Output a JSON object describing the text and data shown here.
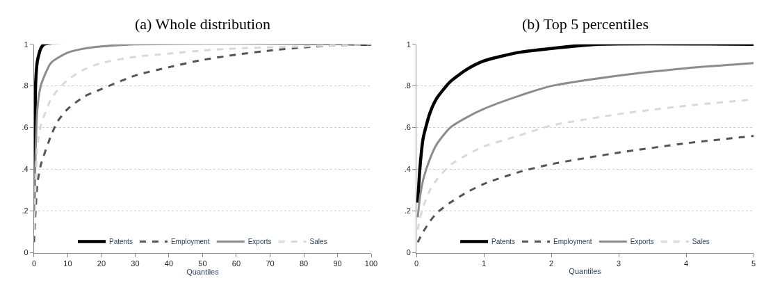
{
  "chart_data": [
    {
      "type": "line",
      "title": "(a) Whole distribution",
      "xlabel": "Quantiles",
      "xlim": [
        0,
        100
      ],
      "xticks": [
        0,
        10,
        20,
        30,
        40,
        50,
        60,
        70,
        80,
        90,
        100
      ],
      "ylim": [
        0,
        1
      ],
      "yticks": [
        {
          "value": 0,
          "label": "0"
        },
        {
          "value": 0.2,
          "label": ".2"
        },
        {
          "value": 0.4,
          "label": ".4"
        },
        {
          "value": 0.6,
          "label": ".6"
        },
        {
          "value": 0.8,
          "label": ".8"
        },
        {
          "value": 1,
          "label": "1"
        }
      ],
      "grid": "y",
      "legend": "bottom",
      "marker": "none",
      "series": [
        {
          "name": "Patents",
          "color": "#000000",
          "line_style": "solid",
          "x": [
            0,
            0.5,
            1,
            2,
            3,
            100
          ],
          "values": [
            0.24,
            0.82,
            0.92,
            0.98,
            1,
            1
          ]
        },
        {
          "name": "Employment",
          "color": "#555555",
          "line_style": "dashed",
          "x": [
            0,
            1,
            2,
            5,
            7,
            10,
            15,
            20,
            30,
            40,
            50,
            60,
            70,
            80,
            90,
            100
          ],
          "values": [
            0.05,
            0.33,
            0.42,
            0.56,
            0.63,
            0.69,
            0.75,
            0.785,
            0.85,
            0.89,
            0.925,
            0.95,
            0.97,
            0.985,
            0.995,
            1
          ]
        },
        {
          "name": "Exports",
          "color": "#8c8c8c",
          "line_style": "solid",
          "x": [
            0,
            1,
            2,
            5,
            10,
            15,
            20,
            30,
            100
          ],
          "values": [
            0.17,
            0.69,
            0.8,
            0.91,
            0.96,
            0.98,
            0.99,
            1,
            1
          ]
        },
        {
          "name": "Sales",
          "color": "#d9d9d9",
          "line_style": "dashed",
          "x": [
            0,
            1,
            2,
            5,
            7,
            10,
            15,
            20,
            30,
            40,
            50,
            60,
            70,
            80,
            90,
            100
          ],
          "values": [
            0.11,
            0.51,
            0.61,
            0.735,
            0.78,
            0.83,
            0.88,
            0.91,
            0.94,
            0.955,
            0.97,
            0.98,
            0.985,
            0.99,
            0.995,
            1
          ]
        }
      ]
    },
    {
      "type": "line",
      "title": "(b) Top 5 percentiles",
      "xlabel": "Quantiles",
      "xlim": [
        0,
        5
      ],
      "xticks": [
        0,
        1,
        2,
        3,
        4,
        5
      ],
      "ylim": [
        0,
        1
      ],
      "yticks": [
        {
          "value": 0,
          "label": "0"
        },
        {
          "value": 0.2,
          "label": ".2"
        },
        {
          "value": 0.4,
          "label": ".4"
        },
        {
          "value": 0.6,
          "label": ".6"
        },
        {
          "value": 0.8,
          "label": ".8"
        },
        {
          "value": 1,
          "label": "1"
        }
      ],
      "grid": "y",
      "legend": "bottom",
      "marker": "none",
      "series": [
        {
          "name": "Patents",
          "color": "#000000",
          "line_style": "solid",
          "x": [
            0.02,
            0.05,
            0.1,
            0.2,
            0.3,
            0.5,
            0.75,
            1,
            1.5,
            2,
            2.7,
            5
          ],
          "values": [
            0.24,
            0.4,
            0.55,
            0.67,
            0.74,
            0.82,
            0.88,
            0.92,
            0.96,
            0.98,
            1,
            1
          ]
        },
        {
          "name": "Employment",
          "color": "#555555",
          "line_style": "dashed",
          "x": [
            0.02,
            0.05,
            0.1,
            0.2,
            0.3,
            0.5,
            0.75,
            1,
            1.5,
            2,
            3,
            4,
            5
          ],
          "values": [
            0.05,
            0.07,
            0.1,
            0.15,
            0.19,
            0.24,
            0.29,
            0.33,
            0.385,
            0.425,
            0.48,
            0.525,
            0.56
          ]
        },
        {
          "name": "Exports",
          "color": "#8c8c8c",
          "line_style": "solid",
          "x": [
            0.02,
            0.05,
            0.1,
            0.2,
            0.3,
            0.5,
            0.75,
            1,
            1.5,
            2,
            3,
            4,
            5
          ],
          "values": [
            0.17,
            0.26,
            0.35,
            0.45,
            0.52,
            0.6,
            0.65,
            0.69,
            0.75,
            0.8,
            0.85,
            0.885,
            0.91
          ]
        },
        {
          "name": "Sales",
          "color": "#d9d9d9",
          "line_style": "dashed",
          "x": [
            0.02,
            0.05,
            0.1,
            0.2,
            0.3,
            0.5,
            0.75,
            1,
            1.5,
            2,
            3,
            4,
            5
          ],
          "values": [
            0.11,
            0.16,
            0.22,
            0.3,
            0.35,
            0.42,
            0.47,
            0.51,
            0.56,
            0.61,
            0.665,
            0.705,
            0.735
          ]
        }
      ]
    }
  ]
}
